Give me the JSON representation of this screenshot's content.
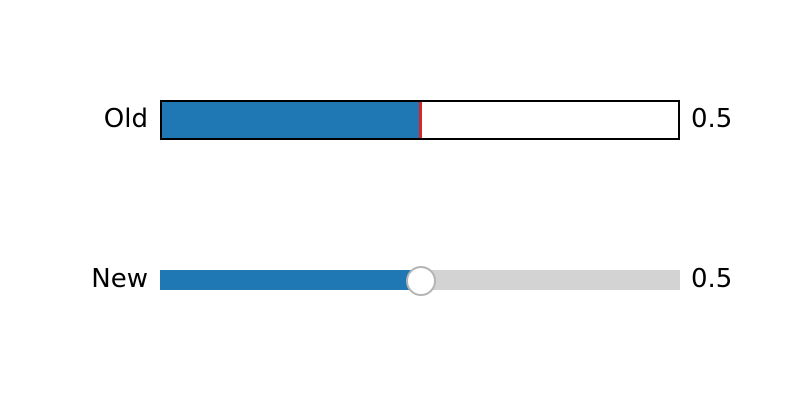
{
  "sliders": {
    "old": {
      "label": "Old",
      "value": 0.5,
      "value_text": "0.5",
      "fill_color": "#1f77b4",
      "marker_color": "#d62728",
      "track_color": "#ffffff",
      "border_color": "#000000"
    },
    "new": {
      "label": "New",
      "value": 0.5,
      "value_text": "0.5",
      "fill_color": "#1f77b4",
      "track_color": "#d3d3d3",
      "knob_color": "#ffffff",
      "knob_border_color": "#b4b4b4"
    }
  },
  "range": {
    "min": 0,
    "max": 1
  }
}
